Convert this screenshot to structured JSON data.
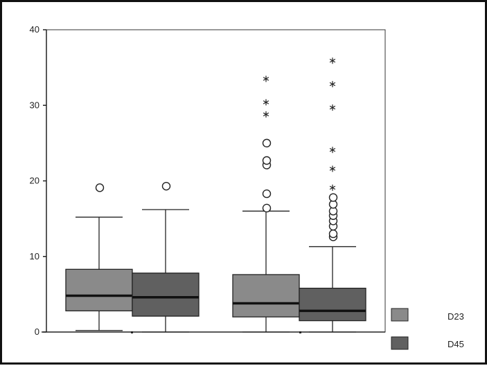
{
  "chart_data": {
    "type": "boxplot",
    "title": "",
    "xlabel": "",
    "ylabel": "",
    "ylim": [
      0,
      40
    ],
    "y_ticks": [
      "0",
      "10",
      "20",
      "30",
      "40"
    ],
    "legend": {
      "placement": "bottom-right",
      "entries": [
        {
          "label": "D23",
          "color": "#8a8a8a"
        },
        {
          "label": "D45",
          "color": "#606060"
        }
      ]
    },
    "groups": [
      {
        "boxes": [
          {
            "series": "D23",
            "whisker_low": 0.2,
            "q1": 2.8,
            "median": 4.8,
            "q3": 8.3,
            "whisker_high": 15.2,
            "outliers_circle": [
              19.1
            ],
            "outliers_star": []
          },
          {
            "series": "D45",
            "whisker_low": 0,
            "q1": 2.1,
            "median": 4.6,
            "q3": 7.8,
            "whisker_high": 16.2,
            "outliers_circle": [
              19.3
            ],
            "outliers_star": []
          }
        ]
      },
      {
        "boxes": [
          {
            "series": "D23",
            "whisker_low": 0,
            "q1": 2.0,
            "median": 3.8,
            "q3": 7.6,
            "whisker_high": 16.0,
            "outliers_circle": [
              16.4,
              18.3,
              22.1,
              22.7,
              25.0
            ],
            "outliers_star": [
              28.8,
              30.4,
              33.5
            ]
          },
          {
            "series": "D45",
            "whisker_low": 0,
            "q1": 1.5,
            "median": 2.8,
            "q3": 5.8,
            "whisker_high": 11.3,
            "outliers_circle": [
              12.6,
              13.0,
              14.0,
              14.7,
              15.4,
              16.0,
              16.9,
              17.8
            ],
            "outliers_star": [
              19.1,
              21.6,
              24.1,
              29.7,
              32.8,
              35.9
            ]
          }
        ]
      }
    ]
  }
}
